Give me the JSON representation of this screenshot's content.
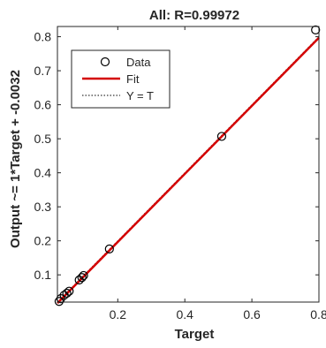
{
  "chart_data": {
    "type": "scatter",
    "title": "All: R=0.99972",
    "xlabel": "Target",
    "ylabel": "Output ~= 1*Target + -0.0032",
    "xlim": [
      0.02,
      0.8
    ],
    "ylim": [
      0.02,
      0.83
    ],
    "xticks": [
      0.2,
      0.4,
      0.6,
      0.8
    ],
    "xtick_labels": [
      "0.2",
      "0.4",
      "0.6",
      "0.8"
    ],
    "yticks": [
      0.1,
      0.2,
      0.3,
      0.4,
      0.5,
      0.6,
      0.7,
      0.8
    ],
    "ytick_labels": [
      "0.1",
      "0.2",
      "0.3",
      "0.4",
      "0.5",
      "0.6",
      "0.7",
      "0.8"
    ],
    "grid": false,
    "legend_position": "top-left",
    "series": [
      {
        "name": "Data",
        "kind": "markers",
        "marker": "circle-open",
        "color": "#000000",
        "points": [
          {
            "x": 0.025,
            "y": 0.022
          },
          {
            "x": 0.03,
            "y": 0.03
          },
          {
            "x": 0.04,
            "y": 0.04
          },
          {
            "x": 0.048,
            "y": 0.046
          },
          {
            "x": 0.055,
            "y": 0.052
          },
          {
            "x": 0.085,
            "y": 0.085
          },
          {
            "x": 0.093,
            "y": 0.092
          },
          {
            "x": 0.098,
            "y": 0.098
          },
          {
            "x": 0.175,
            "y": 0.176
          },
          {
            "x": 0.51,
            "y": 0.507
          },
          {
            "x": 0.79,
            "y": 0.82
          }
        ]
      },
      {
        "name": "Fit",
        "kind": "line",
        "color": "#d40000",
        "slope": 1,
        "intercept": -0.0032
      },
      {
        "name": "Y = T",
        "kind": "line-dotted",
        "color": "#000000",
        "slope": 1,
        "intercept": 0
      }
    ]
  }
}
